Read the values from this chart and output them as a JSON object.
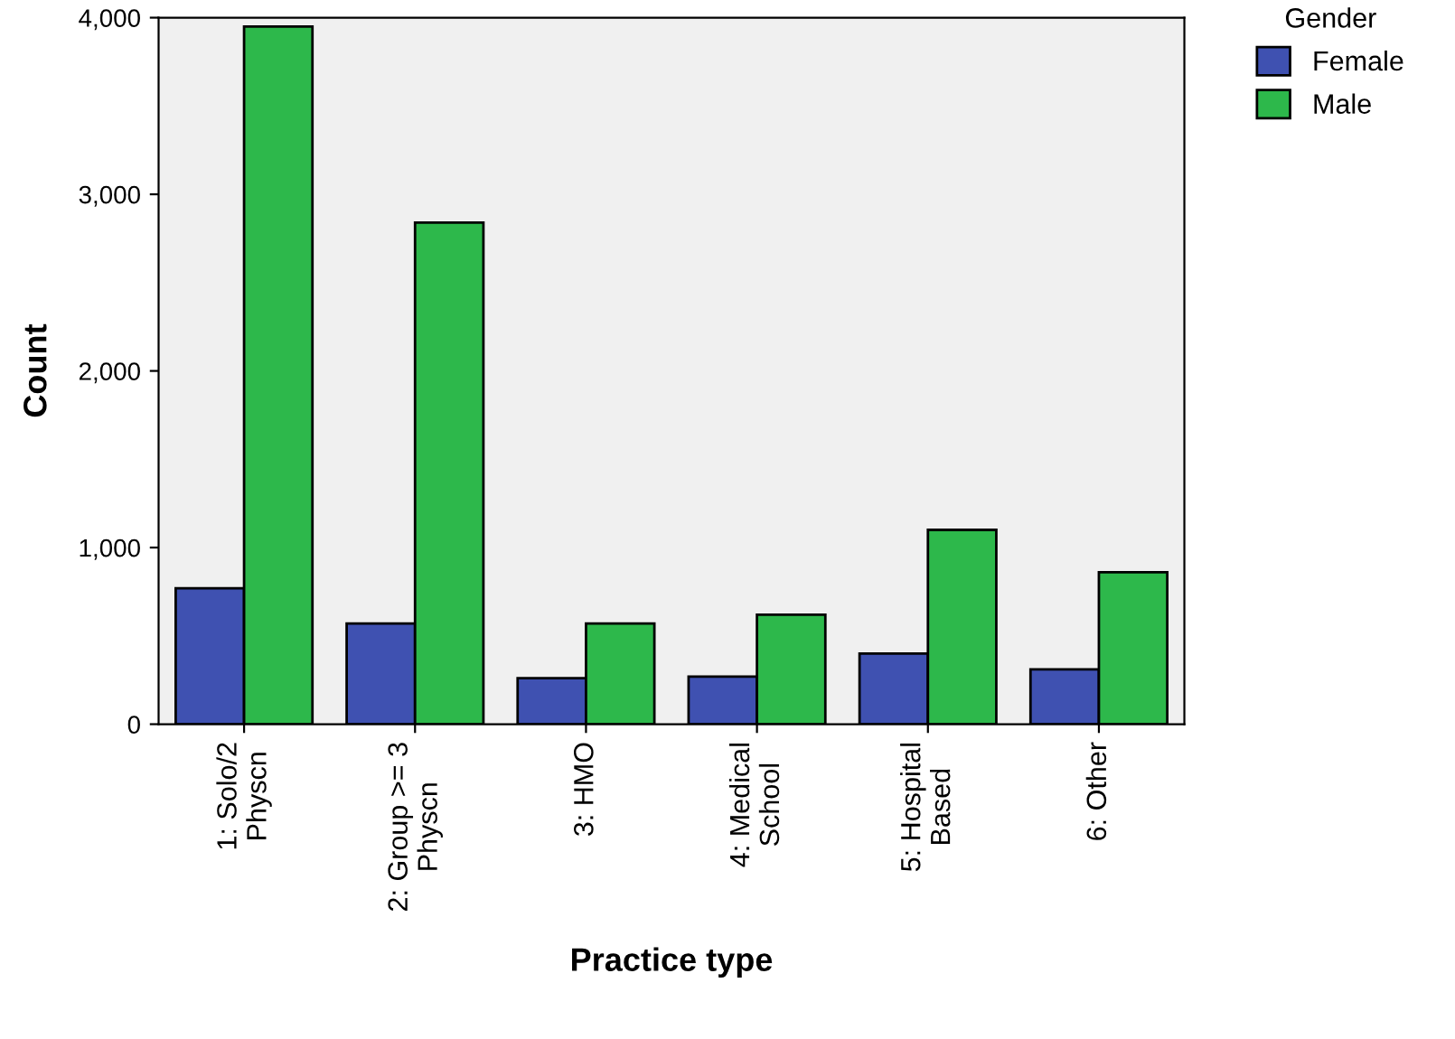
{
  "chart_data": {
    "type": "bar",
    "xlabel": "Practice type",
    "ylabel": "Count",
    "legend_title": "Gender",
    "categories": [
      "1: Solo/2\nPhyscn",
      "2: Group >= 3\nPhyscn",
      "3: HMO",
      "4: Medical\nSchool",
      "5: Hospital\nBased",
      "6: Other"
    ],
    "series": [
      {
        "name": "Female",
        "color": "#3f51b1",
        "values": [
          770,
          570,
          260,
          270,
          400,
          310
        ]
      },
      {
        "name": "Male",
        "color": "#2db84b",
        "values": [
          3950,
          2840,
          570,
          620,
          1100,
          860
        ]
      }
    ],
    "ylim": [
      0,
      4000
    ],
    "yticks": [
      0,
      {
        "value": 1000,
        "label": "1,000"
      },
      {
        "value": 2000,
        "label": "2,000"
      },
      {
        "value": 3000,
        "label": "3,000"
      },
      {
        "value": 4000,
        "label": "4,000"
      }
    ],
    "grid": false,
    "legend": "top right"
  }
}
